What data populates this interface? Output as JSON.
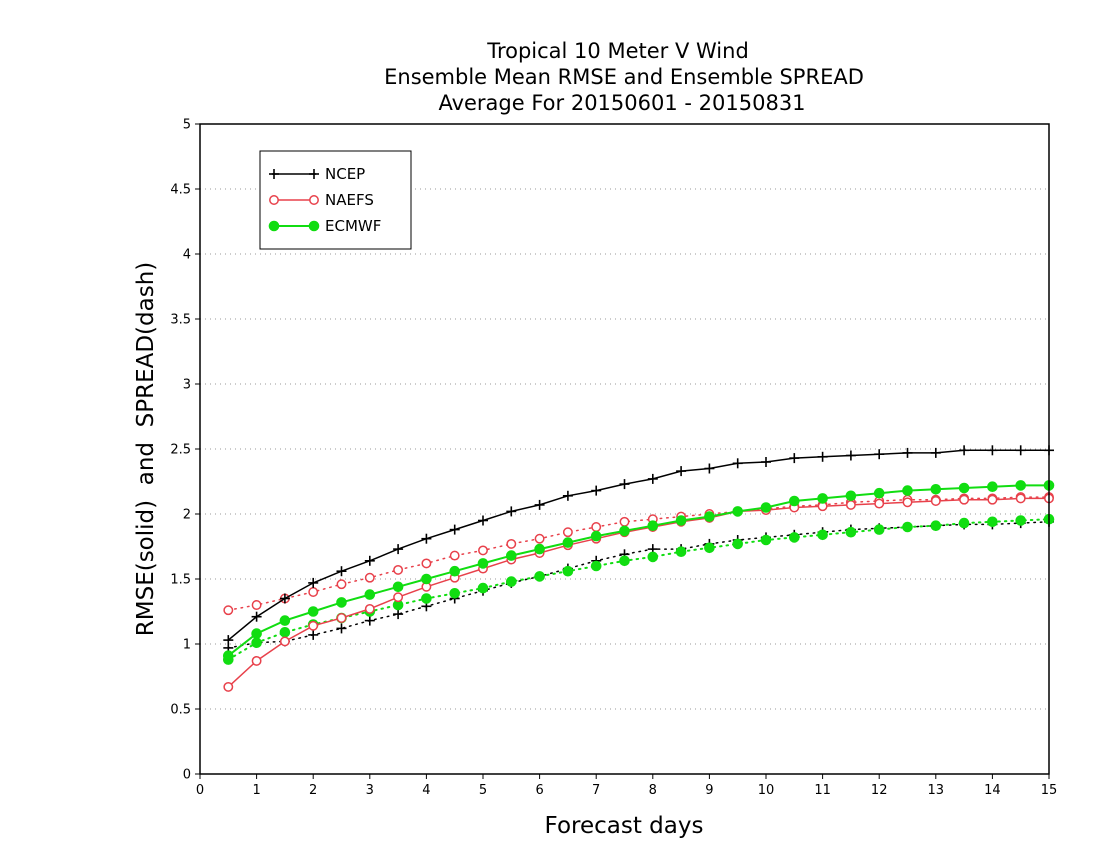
{
  "chart_data": {
    "type": "line",
    "title": [
      "Tropical 10 Meter V Wind",
      "Ensemble Mean RMSE and Ensemble SPREAD",
      "Average For 20150601 - 20150831"
    ],
    "xlabel": "Forecast days",
    "ylabel": "RMSE(solid)  and  SPREAD(dash)",
    "xlim": [
      0,
      15
    ],
    "ylim": [
      0,
      5
    ],
    "x_ticks": [
      "0",
      "1",
      "2",
      "3",
      "4",
      "5",
      "6",
      "7",
      "8",
      "9",
      "10",
      "11",
      "12",
      "13",
      "14",
      "15"
    ],
    "y_ticks": [
      "0",
      "0.5",
      "1",
      "1.5",
      "2",
      "2.5",
      "3",
      "3.5",
      "4",
      "4.5",
      "5"
    ],
    "grid": "horizontal dotted",
    "legend_position": "top-left",
    "x": [
      0.5,
      1,
      1.5,
      2,
      2.5,
      3,
      3.5,
      4,
      4.5,
      5,
      5.5,
      6,
      6.5,
      7,
      7.5,
      8,
      8.5,
      9,
      9.5,
      10,
      10.5,
      11,
      11.5,
      12,
      12.5,
      13,
      13.5,
      14,
      14.5,
      15
    ],
    "series": [
      {
        "name": "NCEP",
        "color": "#000000",
        "marker": "plus",
        "rmse": [
          1.03,
          1.21,
          1.35,
          1.47,
          1.56,
          1.64,
          1.73,
          1.81,
          1.88,
          1.95,
          2.02,
          2.07,
          2.14,
          2.18,
          2.23,
          2.27,
          2.33,
          2.35,
          2.39,
          2.4,
          2.43,
          2.44,
          2.45,
          2.46,
          2.47,
          2.47,
          2.49,
          2.49,
          2.49,
          2.49
        ],
        "spread": [
          0.97,
          1.01,
          1.02,
          1.07,
          1.12,
          1.18,
          1.23,
          1.29,
          1.35,
          1.41,
          1.47,
          1.52,
          1.58,
          1.64,
          1.69,
          1.73,
          1.73,
          1.77,
          1.8,
          1.82,
          1.84,
          1.86,
          1.88,
          1.89,
          1.9,
          1.91,
          1.92,
          1.92,
          1.93,
          1.94
        ]
      },
      {
        "name": "NAEFS",
        "color": "#e8414b",
        "marker": "open-circle",
        "rmse": [
          0.67,
          0.87,
          1.02,
          1.14,
          1.2,
          1.27,
          1.36,
          1.44,
          1.51,
          1.58,
          1.65,
          1.7,
          1.76,
          1.81,
          1.86,
          1.9,
          1.94,
          1.97,
          2.02,
          2.03,
          2.05,
          2.06,
          2.07,
          2.08,
          2.09,
          2.1,
          2.11,
          2.11,
          2.12,
          2.12
        ],
        "spread": [
          1.26,
          1.3,
          1.35,
          1.4,
          1.46,
          1.51,
          1.57,
          1.62,
          1.68,
          1.72,
          1.77,
          1.81,
          1.86,
          1.9,
          1.94,
          1.96,
          1.98,
          2.0,
          2.02,
          2.04,
          2.06,
          2.07,
          2.09,
          2.1,
          2.11,
          2.11,
          2.12,
          2.12,
          2.13,
          2.13
        ]
      },
      {
        "name": "ECMWF",
        "color": "#11dd11",
        "marker": "filled-circle",
        "rmse": [
          0.91,
          1.08,
          1.18,
          1.25,
          1.32,
          1.38,
          1.44,
          1.5,
          1.56,
          1.62,
          1.68,
          1.73,
          1.78,
          1.83,
          1.87,
          1.91,
          1.95,
          1.98,
          2.02,
          2.05,
          2.1,
          2.12,
          2.14,
          2.16,
          2.18,
          2.19,
          2.2,
          2.21,
          2.22,
          2.22
        ],
        "spread": [
          0.88,
          1.01,
          1.09,
          1.15,
          1.2,
          1.25,
          1.3,
          1.35,
          1.39,
          1.43,
          1.48,
          1.52,
          1.56,
          1.6,
          1.64,
          1.67,
          1.71,
          1.74,
          1.77,
          1.8,
          1.82,
          1.84,
          1.86,
          1.88,
          1.9,
          1.91,
          1.93,
          1.94,
          1.95,
          1.96
        ]
      }
    ]
  }
}
